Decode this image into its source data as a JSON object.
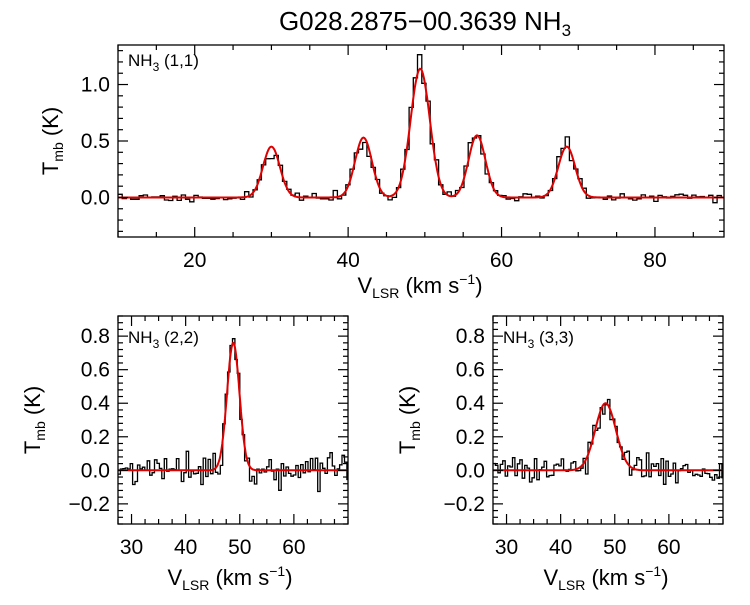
{
  "title": {
    "main": "G028.2875−00.3639 NH",
    "sub": "3"
  },
  "chart_data": [
    {
      "type": "line",
      "panel": "nh3-11",
      "label": {
        "main": "NH",
        "sub": "3",
        "rest": " (1,1)"
      },
      "xlabel": {
        "main": "V",
        "sub": "LSR",
        "rest": " (km s",
        "sup": "−1",
        "end": ")"
      },
      "ylabel": {
        "main": "T",
        "sub": "mb",
        "rest": " (K)"
      },
      "xlim": [
        10,
        89
      ],
      "ylim": [
        -0.35,
        1.35
      ],
      "xticks": [
        20,
        40,
        60,
        80
      ],
      "xtick_labels": [
        "20",
        "40",
        "60",
        "80"
      ],
      "yticks": [
        0.0,
        0.5,
        1.0
      ],
      "ytick_labels": [
        "0.0",
        "0.5",
        "1.0"
      ],
      "series": [
        {
          "kind": "histogram",
          "color": "#000000",
          "noise": 0.022,
          "seed": 11
        },
        {
          "kind": "fit",
          "color": "#e00000",
          "components": [
            {
              "center": 30.0,
              "amp": 0.45,
              "sigma": 1.1
            },
            {
              "center": 42.0,
              "amp": 0.53,
              "sigma": 1.1
            },
            {
              "center": 49.4,
              "amp": 1.14,
              "sigma": 1.25
            },
            {
              "center": 56.8,
              "amp": 0.55,
              "sigma": 1.1
            },
            {
              "center": 68.5,
              "amp": 0.45,
              "sigma": 1.1
            }
          ]
        }
      ]
    },
    {
      "type": "line",
      "panel": "nh3-22",
      "label": {
        "main": "NH",
        "sub": "3",
        "rest": " (2,2)"
      },
      "xlabel": {
        "main": "V",
        "sub": "LSR",
        "rest": " (km s",
        "sup": "−1",
        "end": ")"
      },
      "ylabel": {
        "main": "T",
        "sub": "mb",
        "rest": " (K)"
      },
      "xlim": [
        27.5,
        70
      ],
      "ylim": [
        -0.32,
        0.92
      ],
      "xticks": [
        30,
        40,
        50,
        60
      ],
      "xtick_labels": [
        "30",
        "40",
        "50",
        "60"
      ],
      "yticks": [
        -0.2,
        0.0,
        0.2,
        0.4,
        0.6,
        0.8
      ],
      "ytick_labels": [
        "−0.2",
        "0.0",
        "0.2",
        "0.4",
        "0.6",
        "0.8"
      ],
      "series": [
        {
          "kind": "histogram",
          "color": "#000000",
          "noise": 0.045,
          "seed": 22
        },
        {
          "kind": "fit",
          "color": "#e00000",
          "components": [
            {
              "center": 48.8,
              "amp": 0.76,
              "sigma": 1.15
            }
          ]
        }
      ]
    },
    {
      "type": "line",
      "panel": "nh3-33",
      "label": {
        "main": "NH",
        "sub": "3",
        "rest": " (3,3)"
      },
      "xlabel": {
        "main": "V",
        "sub": "LSR",
        "rest": " (km s",
        "sup": "−1",
        "end": ")"
      },
      "ylabel": {
        "main": "T",
        "sub": "mb",
        "rest": " (K)"
      },
      "xlim": [
        27.5,
        70
      ],
      "ylim": [
        -0.32,
        0.92
      ],
      "xticks": [
        30,
        40,
        50,
        60
      ],
      "xtick_labels": [
        "30",
        "40",
        "50",
        "60"
      ],
      "yticks": [
        -0.2,
        0.0,
        0.2,
        0.4,
        0.6,
        0.8
      ],
      "ytick_labels": [
        "−0.2",
        "0.0",
        "0.2",
        "0.4",
        "0.6",
        "0.8"
      ],
      "series": [
        {
          "kind": "histogram",
          "color": "#000000",
          "noise": 0.04,
          "seed": 33
        },
        {
          "kind": "fit",
          "color": "#e00000",
          "components": [
            {
              "center": 48.3,
              "amp": 0.4,
              "sigma": 1.9
            }
          ]
        }
      ]
    }
  ]
}
